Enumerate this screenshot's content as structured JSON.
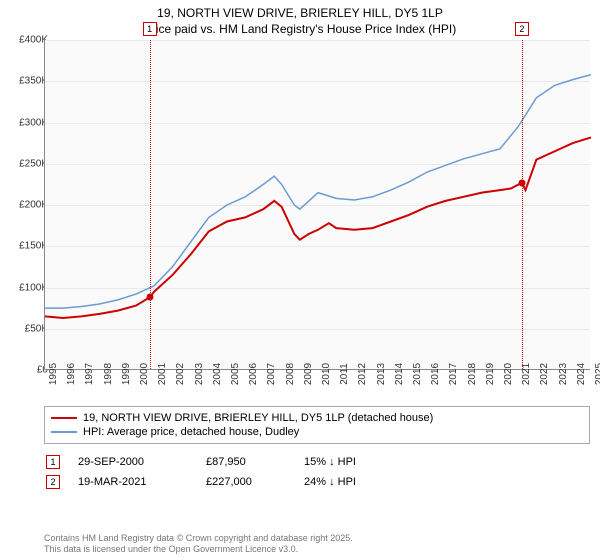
{
  "title": {
    "line1": "19, NORTH VIEW DRIVE, BRIERLEY HILL, DY5 1LP",
    "line2": "Price paid vs. HM Land Registry's House Price Index (HPI)"
  },
  "chart": {
    "type": "line",
    "background_color": "#fafafa",
    "grid_color": "#e8e8e8",
    "axis_color": "#888888",
    "ylim": [
      0,
      400000
    ],
    "ytick_step": 50000,
    "yticks": [
      "£0",
      "£50K",
      "£100K",
      "£150K",
      "£200K",
      "£250K",
      "£300K",
      "£350K",
      "£400K"
    ],
    "xlim": [
      1995,
      2025
    ],
    "xticks": [
      1995,
      1996,
      1997,
      1998,
      1999,
      2000,
      2001,
      2002,
      2003,
      2004,
      2005,
      2006,
      2007,
      2008,
      2009,
      2010,
      2011,
      2012,
      2013,
      2014,
      2015,
      2016,
      2017,
      2018,
      2019,
      2020,
      2021,
      2022,
      2023,
      2024,
      2025
    ],
    "series": {
      "price_paid": {
        "label": "19, NORTH VIEW DRIVE, BRIERLEY HILL, DY5 1LP (detached house)",
        "color": "#cc0000",
        "line_width": 2,
        "data": [
          [
            1995,
            65000
          ],
          [
            1996,
            63000
          ],
          [
            1997,
            65000
          ],
          [
            1998,
            68000
          ],
          [
            1999,
            72000
          ],
          [
            2000,
            78000
          ],
          [
            2000.75,
            87950
          ],
          [
            2001,
            95000
          ],
          [
            2002,
            115000
          ],
          [
            2003,
            140000
          ],
          [
            2004,
            168000
          ],
          [
            2005,
            180000
          ],
          [
            2006,
            185000
          ],
          [
            2007,
            195000
          ],
          [
            2007.6,
            205000
          ],
          [
            2008,
            198000
          ],
          [
            2008.7,
            165000
          ],
          [
            2009,
            158000
          ],
          [
            2009.5,
            165000
          ],
          [
            2010,
            170000
          ],
          [
            2010.6,
            178000
          ],
          [
            2011,
            172000
          ],
          [
            2012,
            170000
          ],
          [
            2013,
            172000
          ],
          [
            2014,
            180000
          ],
          [
            2015,
            188000
          ],
          [
            2016,
            198000
          ],
          [
            2017,
            205000
          ],
          [
            2018,
            210000
          ],
          [
            2019,
            215000
          ],
          [
            2020,
            218000
          ],
          [
            2020.6,
            220000
          ],
          [
            2021.2,
            227000
          ],
          [
            2021.4,
            218000
          ],
          [
            2022,
            255000
          ],
          [
            2023,
            265000
          ],
          [
            2024,
            275000
          ],
          [
            2025,
            282000
          ]
        ]
      },
      "hpi": {
        "label": "HPI: Average price, detached house, Dudley",
        "color": "#6b9bd1",
        "line_width": 1.5,
        "data": [
          [
            1995,
            75000
          ],
          [
            1996,
            75000
          ],
          [
            1997,
            77000
          ],
          [
            1998,
            80000
          ],
          [
            1999,
            85000
          ],
          [
            2000,
            92000
          ],
          [
            2001,
            102000
          ],
          [
            2002,
            125000
          ],
          [
            2003,
            155000
          ],
          [
            2004,
            185000
          ],
          [
            2005,
            200000
          ],
          [
            2006,
            210000
          ],
          [
            2007,
            225000
          ],
          [
            2007.6,
            235000
          ],
          [
            2008,
            225000
          ],
          [
            2008.7,
            200000
          ],
          [
            2009,
            195000
          ],
          [
            2009.5,
            205000
          ],
          [
            2010,
            215000
          ],
          [
            2011,
            208000
          ],
          [
            2012,
            206000
          ],
          [
            2013,
            210000
          ],
          [
            2014,
            218000
          ],
          [
            2015,
            228000
          ],
          [
            2016,
            240000
          ],
          [
            2017,
            248000
          ],
          [
            2018,
            256000
          ],
          [
            2019,
            262000
          ],
          [
            2020,
            268000
          ],
          [
            2021,
            295000
          ],
          [
            2022,
            330000
          ],
          [
            2023,
            345000
          ],
          [
            2024,
            352000
          ],
          [
            2025,
            358000
          ]
        ]
      }
    },
    "markers": [
      {
        "n": "1",
        "x": 2000.75,
        "y": 87950,
        "color": "#cc0000"
      },
      {
        "n": "2",
        "x": 2021.2,
        "y": 227000,
        "color": "#cc0000"
      }
    ]
  },
  "legend": {
    "series1_label": "19, NORTH VIEW DRIVE, BRIERLEY HILL, DY5 1LP (detached house)",
    "series1_color": "#cc0000",
    "series2_label": "HPI: Average price, detached house, Dudley",
    "series2_color": "#6b9bd1"
  },
  "sales": [
    {
      "n": "1",
      "date": "29-SEP-2000",
      "price": "£87,950",
      "delta": "15% ↓ HPI",
      "color": "#cc0000"
    },
    {
      "n": "2",
      "date": "19-MAR-2021",
      "price": "£227,000",
      "delta": "24% ↓ HPI",
      "color": "#cc0000"
    }
  ],
  "footer": {
    "line1": "Contains HM Land Registry data © Crown copyright and database right 2025.",
    "line2": "This data is licensed under the Open Government Licence v3.0."
  }
}
